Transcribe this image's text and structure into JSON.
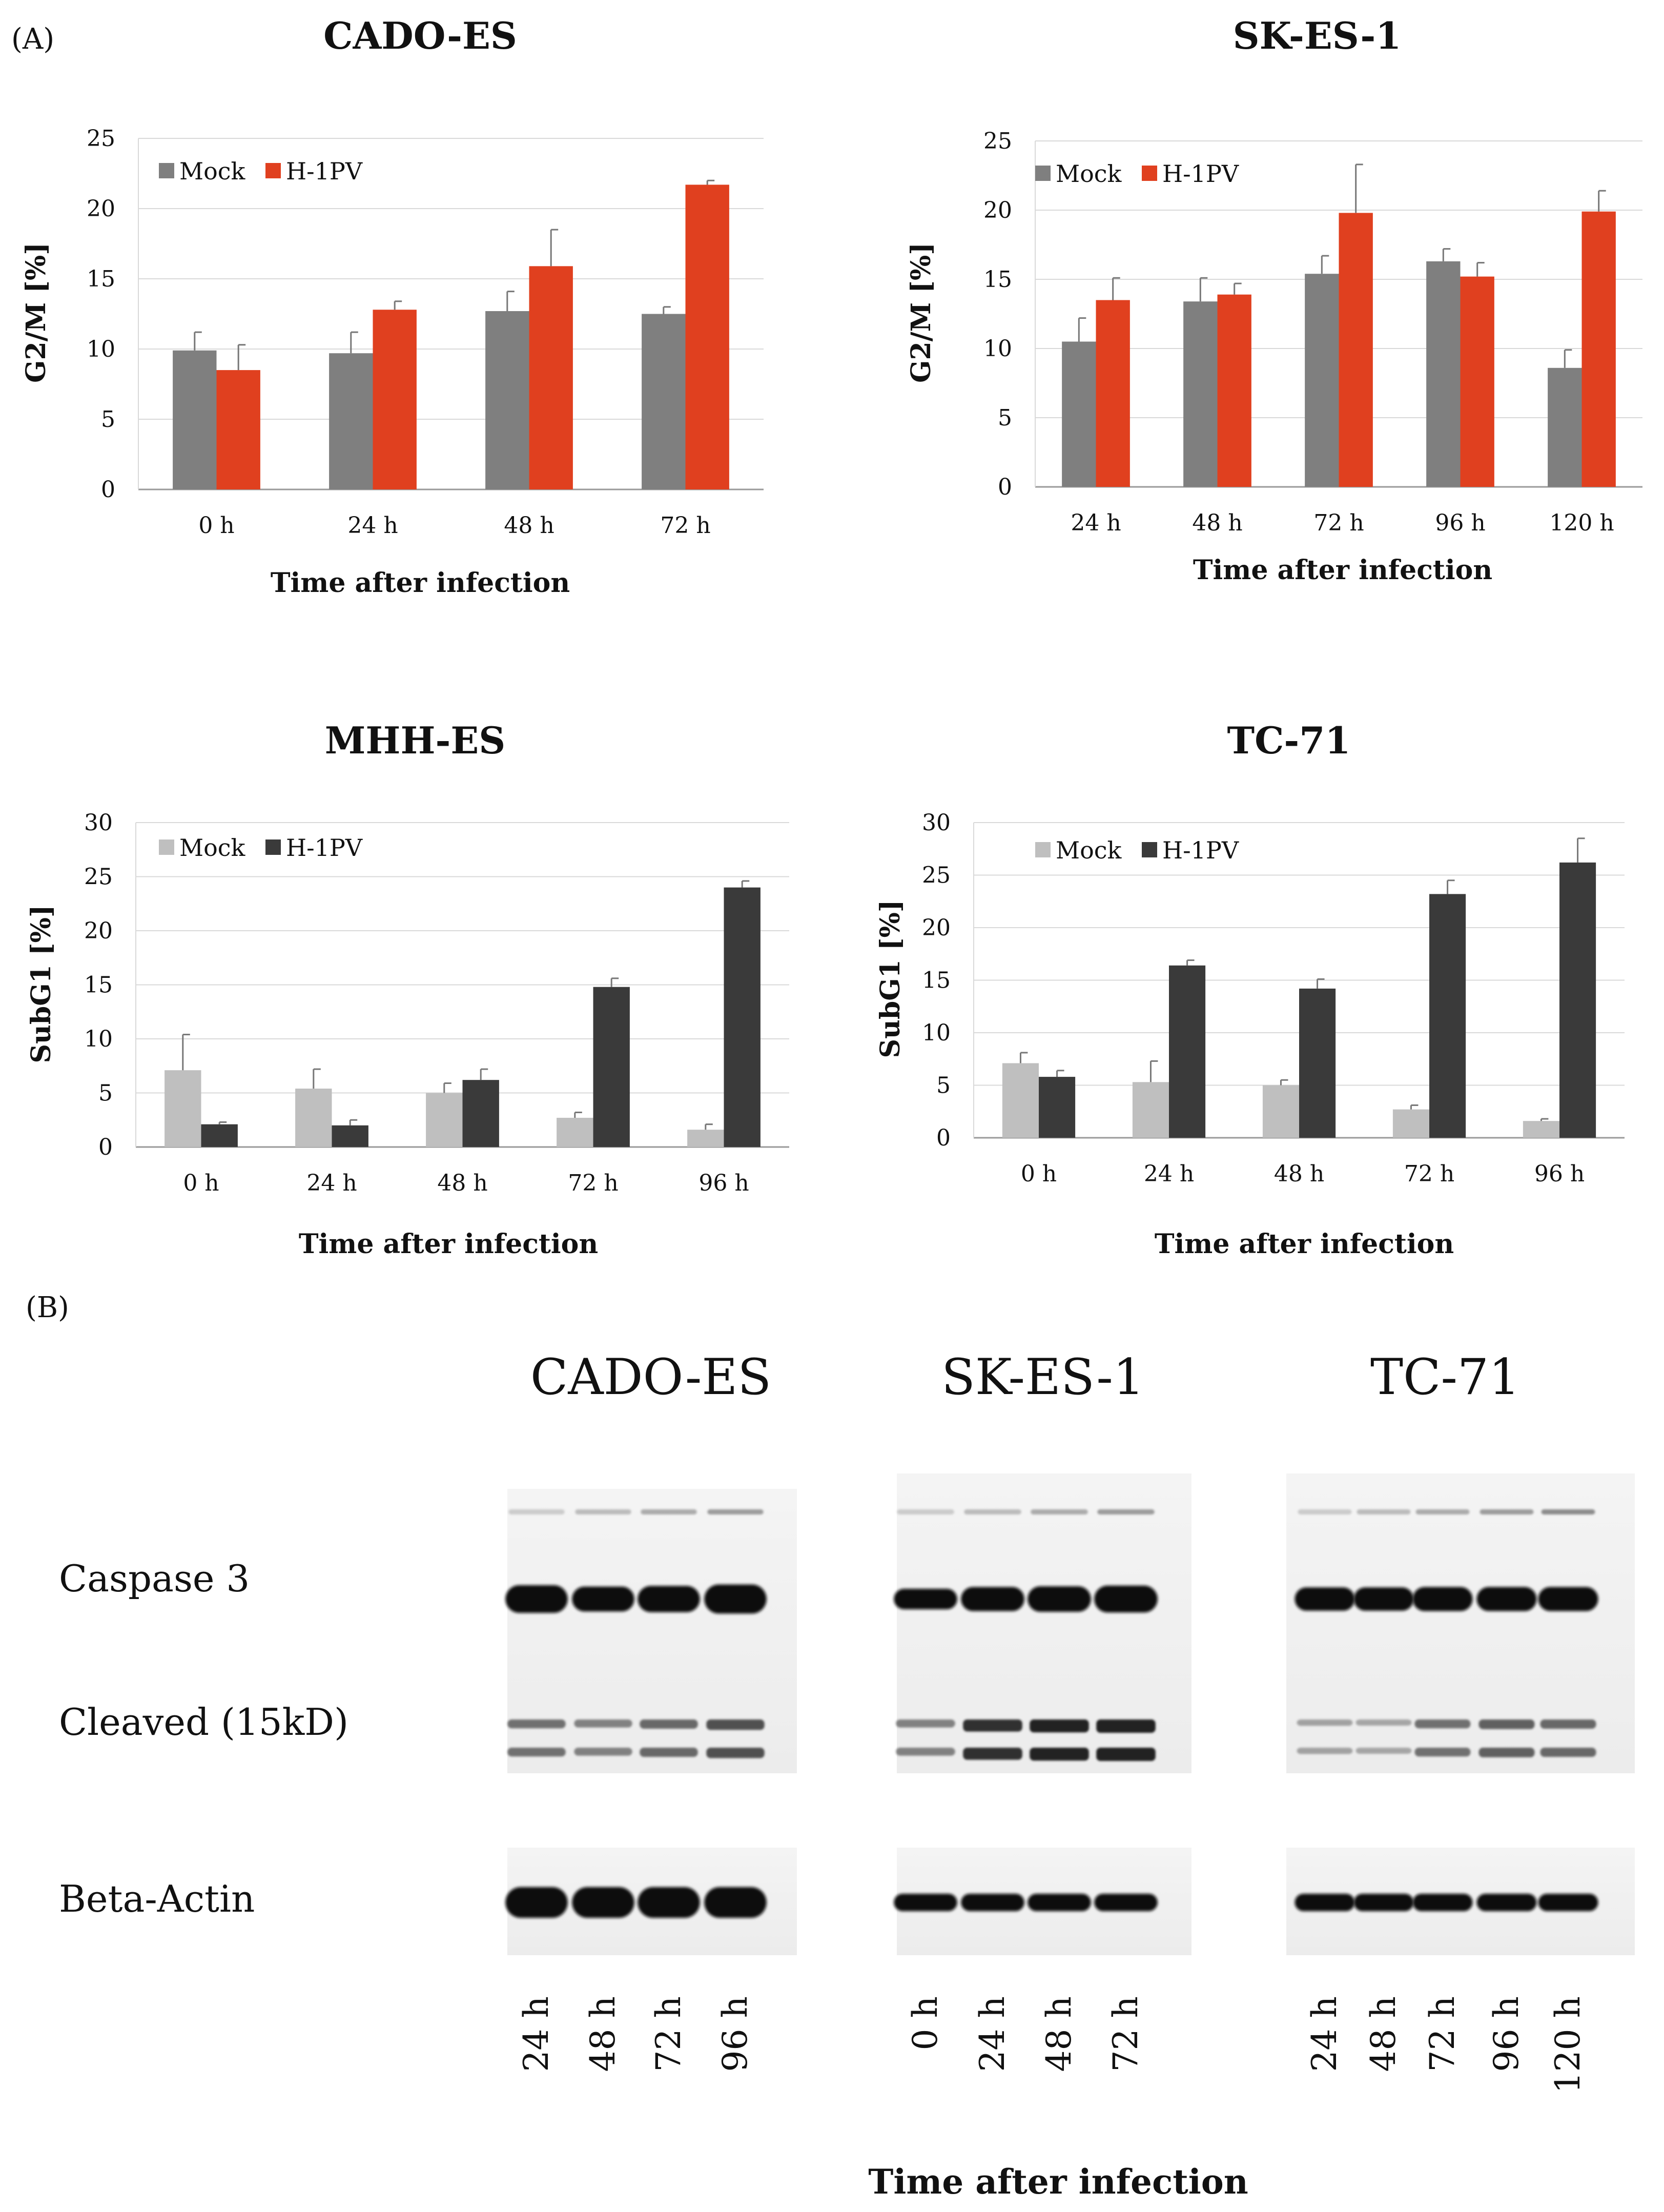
{
  "panel_labels": {
    "a": "(A)",
    "b": "(B)"
  },
  "colors": {
    "mock_a": "#7f7f7f",
    "h1pv_a": "#e0401f",
    "mock_b": "#bfbfbf",
    "h1pv_b": "#3a3a3a",
    "grid": "#d9d9d9",
    "axis": "#9a9a9a",
    "errorbar": "#777777"
  },
  "chart_data": [
    {
      "type": "bar",
      "title": "CADO-ES",
      "xlabel": "Time after infection",
      "ylabel": "G2/M [%]",
      "ylim": [
        0,
        25
      ],
      "yticks": [
        0,
        5,
        10,
        15,
        20,
        25
      ],
      "legend_position": "top-left",
      "categories": [
        "0 h",
        "24 h",
        "48 h",
        "72 h"
      ],
      "series": [
        {
          "name": "Mock",
          "values": [
            9.9,
            9.7,
            12.7,
            12.5
          ],
          "errors": [
            1.3,
            1.5,
            1.4,
            0.5
          ]
        },
        {
          "name": "H-1PV",
          "values": [
            8.5,
            12.8,
            15.9,
            21.7
          ],
          "errors": [
            1.8,
            0.6,
            2.6,
            0.3
          ]
        }
      ]
    },
    {
      "type": "bar",
      "title": "SK-ES-1",
      "xlabel": "Time after infection",
      "ylabel": "G2/M [%]",
      "ylim": [
        0,
        25
      ],
      "yticks": [
        0,
        5,
        10,
        15,
        20,
        25
      ],
      "legend_position": "top-left",
      "categories": [
        "24 h",
        "48 h",
        "72 h",
        "96 h",
        "120 h"
      ],
      "series": [
        {
          "name": "Mock",
          "values": [
            10.5,
            13.4,
            15.4,
            16.3,
            8.6
          ],
          "errors": [
            1.7,
            1.7,
            1.3,
            0.9,
            1.3
          ]
        },
        {
          "name": "H-1PV",
          "values": [
            13.5,
            13.9,
            19.8,
            15.2,
            19.9
          ],
          "errors": [
            1.6,
            0.8,
            3.5,
            1.0,
            1.5
          ]
        }
      ]
    },
    {
      "type": "bar",
      "title": "MHH-ES",
      "xlabel": "Time after infection",
      "ylabel": "SubG1 [%]",
      "ylim": [
        0,
        30
      ],
      "yticks": [
        0,
        5,
        10,
        15,
        20,
        25,
        30
      ],
      "legend_position": "top-left",
      "categories": [
        "0 h",
        "24 h",
        "48 h",
        "72 h",
        "96 h"
      ],
      "series": [
        {
          "name": "Mock",
          "values": [
            7.1,
            5.4,
            5.0,
            2.7,
            1.6
          ],
          "errors": [
            3.3,
            1.8,
            0.9,
            0.5,
            0.5
          ]
        },
        {
          "name": "H-1PV",
          "values": [
            2.1,
            2.0,
            6.2,
            14.8,
            24.0
          ],
          "errors": [
            0.2,
            0.5,
            1.0,
            0.8,
            0.6
          ]
        }
      ]
    },
    {
      "type": "bar",
      "title": "TC-71",
      "xlabel": "Time after infection",
      "ylabel": "SubG1 [%]",
      "ylim": [
        0,
        30
      ],
      "yticks": [
        0,
        5,
        10,
        15,
        20,
        25,
        30
      ],
      "legend_position": "top-left",
      "categories": [
        "0 h",
        "24 h",
        "48 h",
        "72 h",
        "96 h"
      ],
      "series": [
        {
          "name": "Mock",
          "values": [
            7.1,
            5.3,
            5.0,
            2.7,
            1.6
          ],
          "errors": [
            1.0,
            2.0,
            0.5,
            0.4,
            0.2
          ]
        },
        {
          "name": "H-1PV",
          "values": [
            5.8,
            16.4,
            14.2,
            23.2,
            26.2
          ],
          "errors": [
            0.6,
            0.5,
            0.9,
            1.3,
            2.3
          ]
        }
      ]
    }
  ],
  "western_blot": {
    "row_labels": [
      "Caspase 3",
      "Cleaved (15kD)",
      "Beta-Actin"
    ],
    "xlabel": "Time after infection",
    "blots": [
      {
        "title": "CADO-ES",
        "lanes": [
          "24 h",
          "48 h",
          "72 h",
          "96 h"
        ]
      },
      {
        "title": "SK-ES-1",
        "lanes": [
          "0 h",
          "24 h",
          "48 h",
          "72 h"
        ]
      },
      {
        "title": "TC-71",
        "lanes": [
          "24 h",
          "48 h",
          "72 h",
          "96 h",
          "120 h"
        ]
      }
    ]
  }
}
